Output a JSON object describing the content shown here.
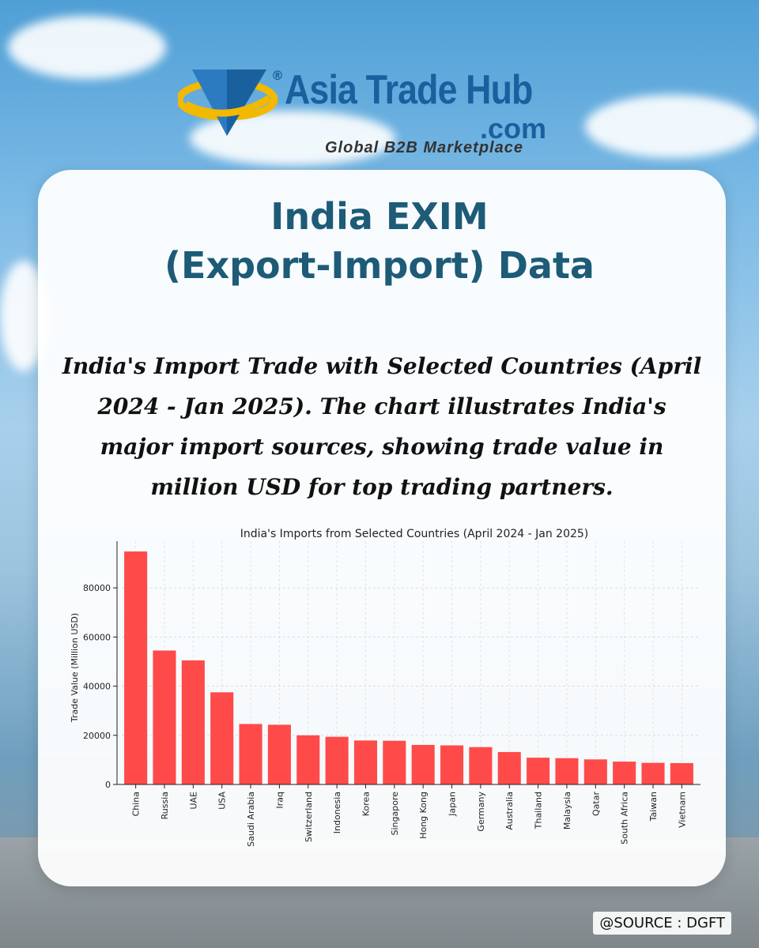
{
  "brand": {
    "name": "Asia Trade Hub",
    "domain_suffix": ".com",
    "registered_mark": "®",
    "tagline": "Global B2B Marketplace"
  },
  "title_line1": "India EXIM",
  "title_line2": "(Export-Import) Data",
  "subtitle": "India's Import Trade with Selected Countries (April 2024 - Jan 2025). The chart illustrates India's major import sources, showing trade value in million USD for top trading partners.",
  "source": "@SOURCE : DGFT",
  "colors": {
    "bar": "#ff4a4a",
    "title": "#1d5b77"
  },
  "chart_data": {
    "type": "bar",
    "title": "India's Imports from Selected Countries (April 2024 - Jan 2025)",
    "xlabel": "",
    "ylabel": "Trade Value (Million USD)",
    "categories": [
      "China",
      "Russia",
      "UAE",
      "USA",
      "Saudi Arabia",
      "Iraq",
      "Switzerland",
      "Indonesia",
      "Korea",
      "Singapore",
      "Hong Kong",
      "Japan",
      "Germany",
      "Australia",
      "Thailand",
      "Malaysia",
      "Qatar",
      "South Africa",
      "Taiwan",
      "Vietnam"
    ],
    "values": [
      94800,
      54500,
      50500,
      37500,
      24600,
      24300,
      20000,
      19400,
      17900,
      17800,
      16100,
      15900,
      15200,
      13200,
      10900,
      10700,
      10200,
      9300,
      8800,
      8700
    ],
    "yticks": [
      0,
      20000,
      40000,
      60000,
      80000
    ],
    "ylim": [
      0,
      99000
    ],
    "grid": true
  }
}
